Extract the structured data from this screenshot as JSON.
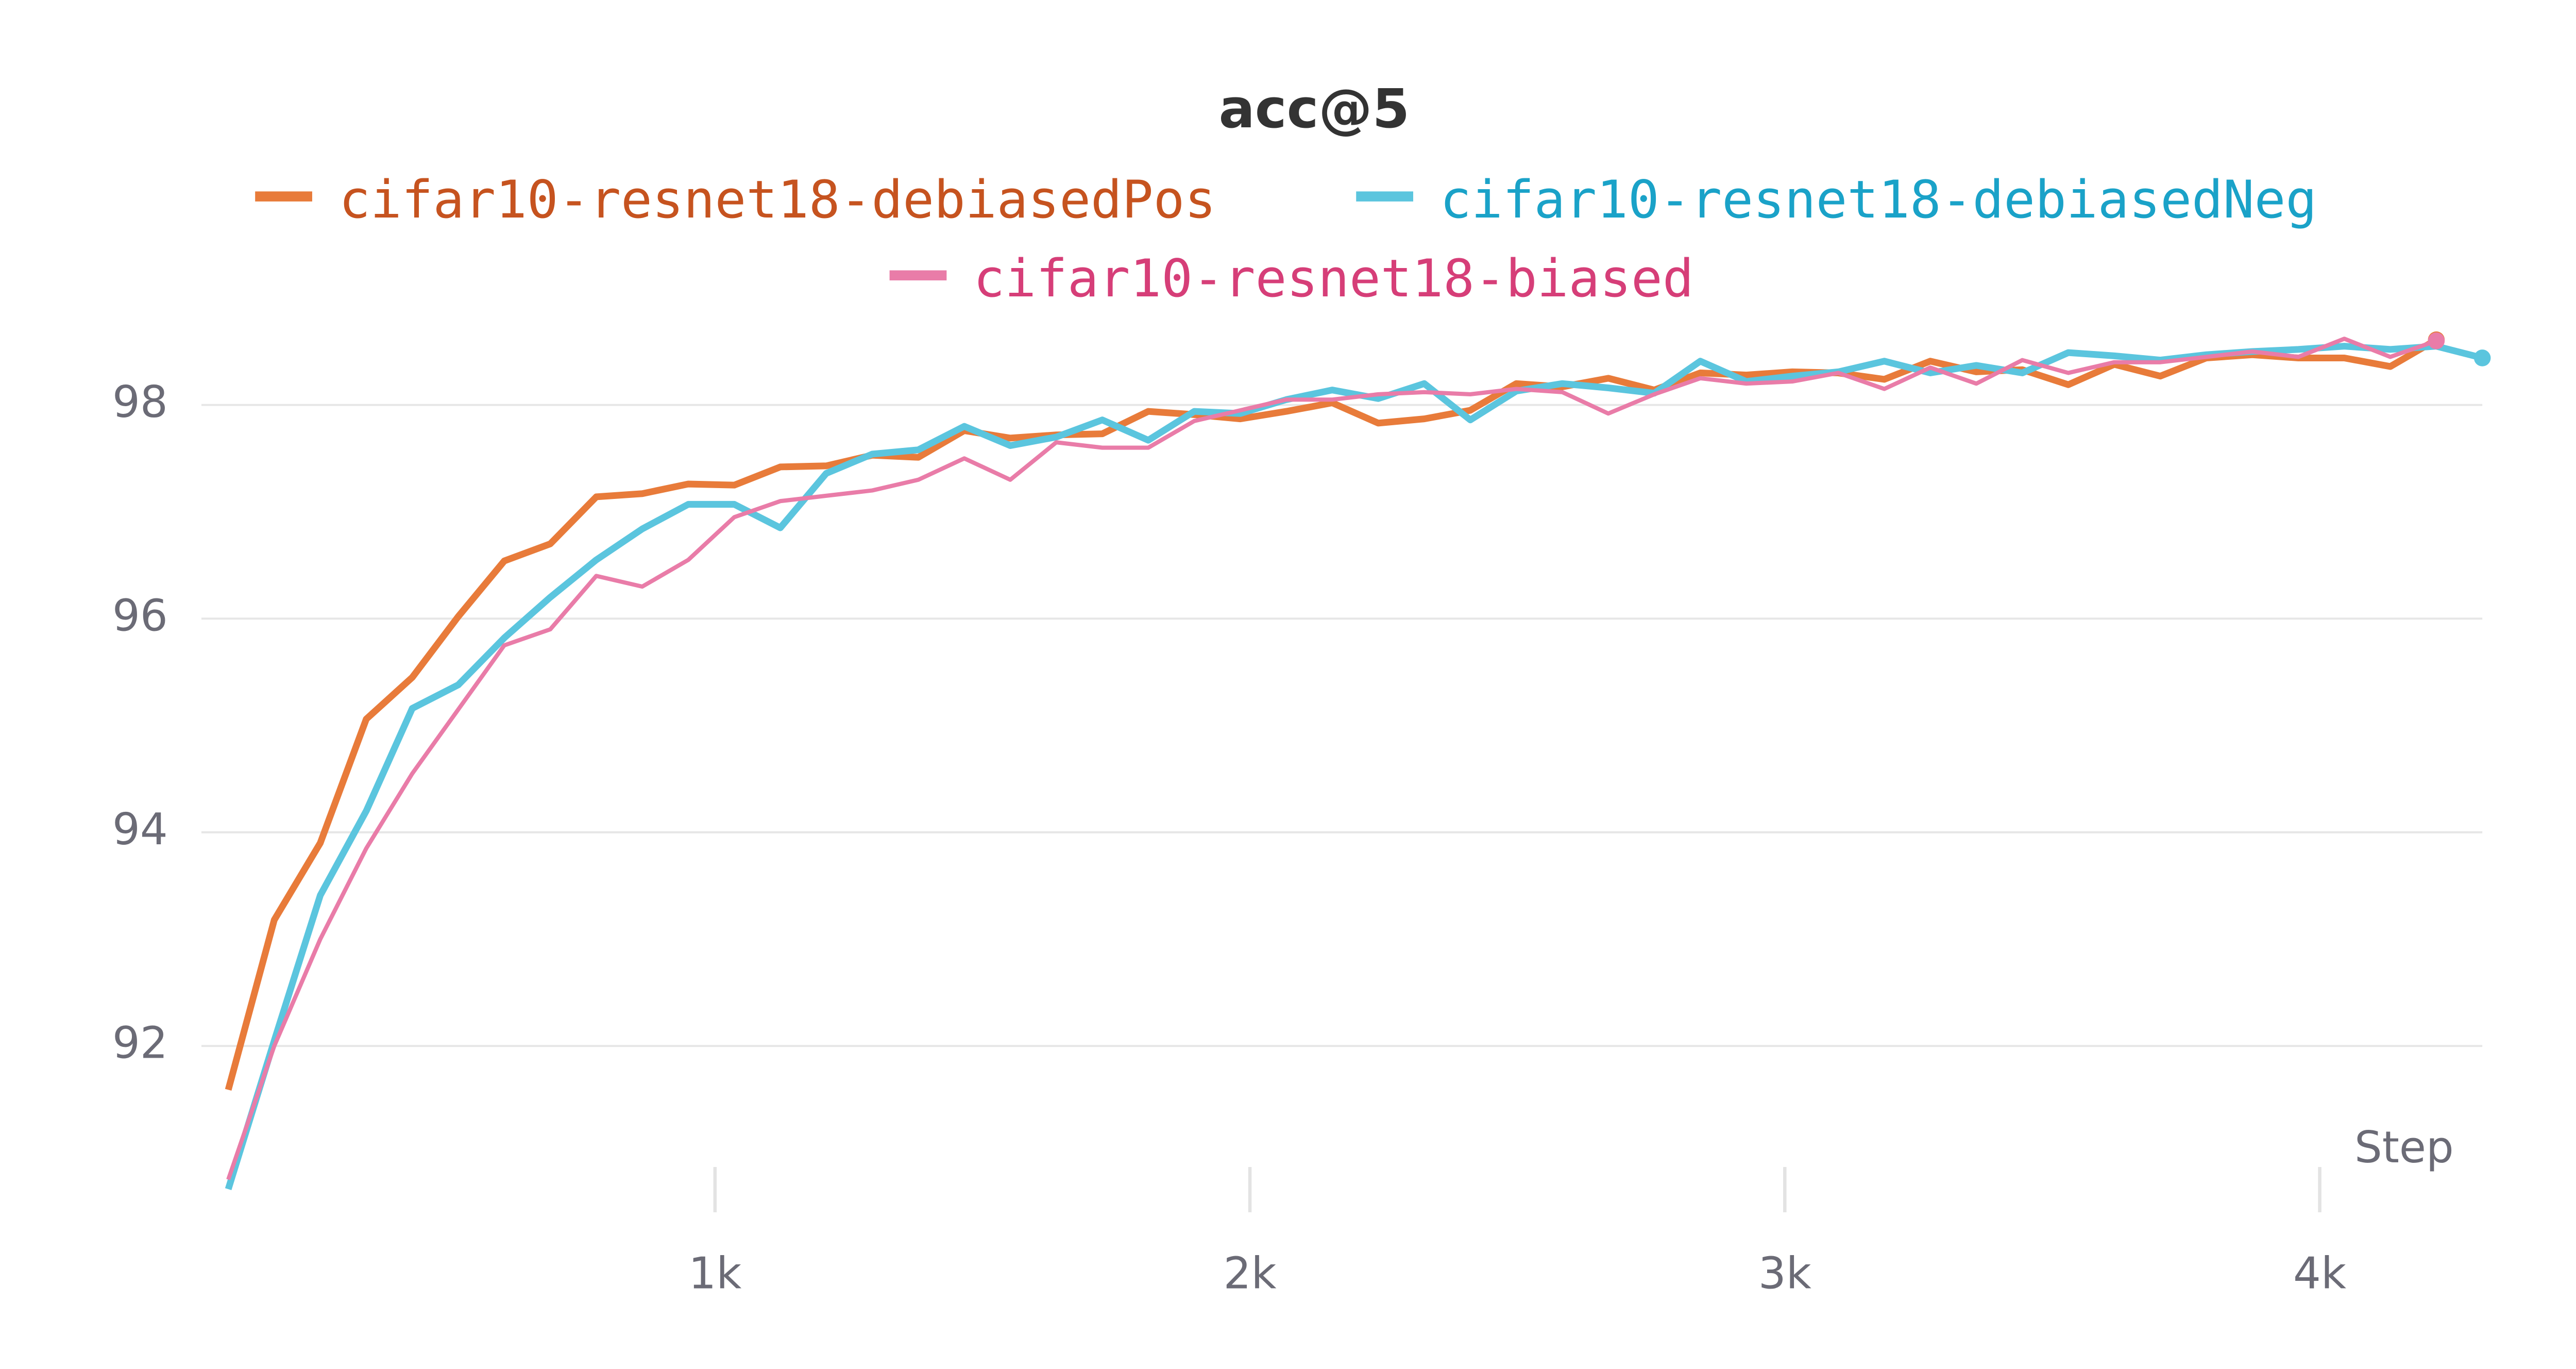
{
  "chart_data": {
    "type": "line",
    "title": "acc@5",
    "x_label": "Step",
    "x": [
      90,
      176,
      262,
      348,
      434,
      520,
      606,
      692,
      778,
      864,
      950,
      1036,
      1122,
      1208,
      1294,
      1380,
      1466,
      1552,
      1638,
      1724,
      1810,
      1896,
      1982,
      2068,
      2154,
      2240,
      2326,
      2412,
      2498,
      2584,
      2670,
      2756,
      2842,
      2928,
      3014,
      3100,
      3186,
      3272,
      3358,
      3444,
      3530,
      3616,
      3702,
      3788,
      3874,
      3960,
      4046,
      4132,
      4218,
      4304
    ],
    "series": [
      {
        "name": "cifar10-resnet18-debiasedPos",
        "color": "#e87b3a",
        "text_color": "#c6531f",
        "line_width": 4,
        "values": [
          91.59,
          93.18,
          93.9,
          95.06,
          95.45,
          96.02,
          96.54,
          96.7,
          97.14,
          97.17,
          97.26,
          97.25,
          97.42,
          97.43,
          97.53,
          97.51,
          97.76,
          97.69,
          97.72,
          97.73,
          97.94,
          97.91,
          97.87,
          97.94,
          98.02,
          97.83,
          97.87,
          97.95,
          98.2,
          98.17,
          98.25,
          98.14,
          98.3,
          98.28,
          98.31,
          98.3,
          98.24,
          98.41,
          98.31,
          98.33,
          98.19,
          98.38,
          98.27,
          98.44,
          98.47,
          98.44,
          98.44,
          98.36,
          98.61,
          null
        ]
      },
      {
        "name": "cifar10-resnet18-debiasedNeg",
        "color": "#5bc5de",
        "text_color": "#1aa2c8",
        "line_width": 4,
        "values": [
          90.66,
          92.05,
          93.41,
          94.2,
          95.16,
          95.38,
          95.82,
          96.2,
          96.55,
          96.84,
          97.07,
          97.07,
          96.85,
          97.36,
          97.54,
          97.58,
          97.8,
          97.62,
          97.7,
          97.86,
          97.67,
          97.94,
          97.92,
          98.05,
          98.14,
          98.06,
          98.2,
          97.86,
          98.13,
          98.2,
          98.16,
          98.11,
          98.41,
          98.22,
          98.27,
          98.31,
          98.41,
          98.3,
          98.37,
          98.3,
          98.49,
          98.46,
          98.42,
          98.47,
          98.5,
          98.52,
          98.55,
          98.52,
          98.55,
          98.44
        ]
      },
      {
        "name": "cifar10-resnet18-biased",
        "color": "#e97ca8",
        "text_color": "#d63e78",
        "line_width": 2.5,
        "values": [
          90.75,
          92.0,
          93.0,
          93.85,
          94.55,
          95.15,
          95.75,
          95.9,
          96.4,
          96.3,
          96.55,
          96.95,
          97.1,
          97.15,
          97.2,
          97.3,
          97.5,
          97.3,
          97.65,
          97.6,
          97.6,
          97.85,
          97.95,
          98.05,
          98.05,
          98.1,
          98.12,
          98.1,
          98.15,
          98.12,
          97.92,
          98.1,
          98.25,
          98.2,
          98.22,
          98.3,
          98.15,
          98.35,
          98.2,
          98.42,
          98.3,
          98.4,
          98.4,
          98.45,
          98.5,
          98.45,
          98.62,
          98.45,
          98.6,
          null
        ]
      }
    ],
    "xlim": [
      90,
      4304
    ],
    "xticks": [
      {
        "value": 1000,
        "label": "1k"
      },
      {
        "value": 2000,
        "label": "2k"
      },
      {
        "value": 3000,
        "label": "3k"
      },
      {
        "value": 4000,
        "label": "4k"
      }
    ],
    "ylim": [
      90.6,
      98.6
    ],
    "yticks": [
      92,
      94,
      96,
      98
    ],
    "grid": true
  }
}
